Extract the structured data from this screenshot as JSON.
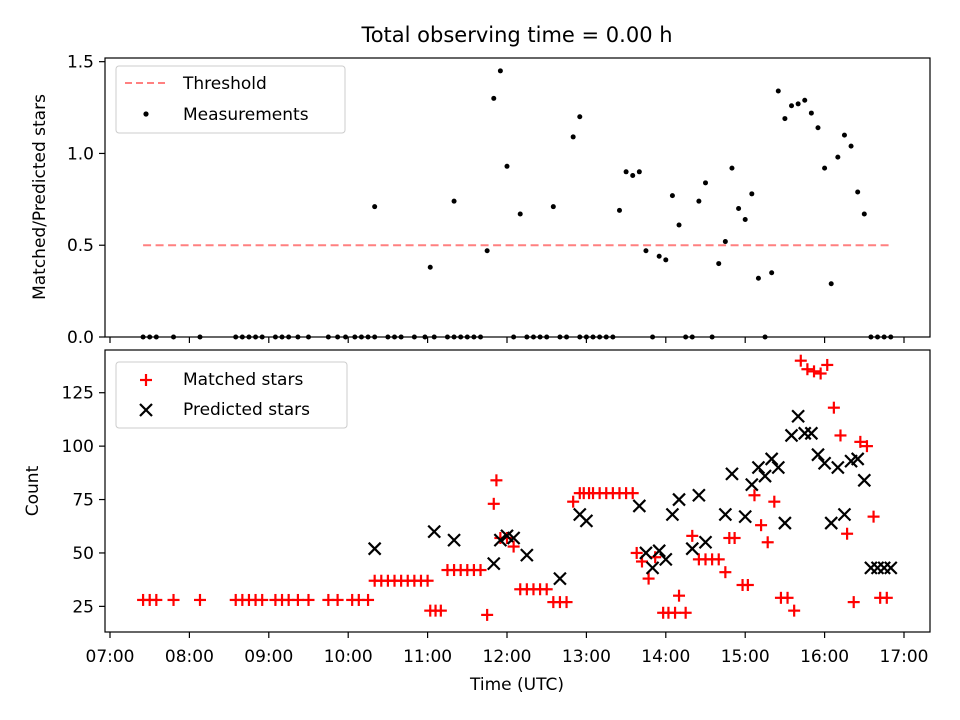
{
  "title": "Total observing time = 0.00 h",
  "chart_data": [
    {
      "type": "scatter",
      "ylabel": "Matched/Predicted stars",
      "ylim": [
        0,
        1.52
      ],
      "yticks": [
        "0.0",
        "0.5",
        "1.0",
        "1.5"
      ],
      "legend": {
        "placement": "top-left",
        "entries": [
          "Threshold",
          "Measurements"
        ]
      },
      "series": [
        {
          "name": "Threshold",
          "kind": "dashed-line",
          "color": "#ff8080",
          "x": [
            "07:25",
            "16:50"
          ],
          "y": [
            0.5,
            0.5
          ]
        },
        {
          "name": "Measurements",
          "kind": "points",
          "color": "#000000",
          "x": [
            "07:25",
            "07:30",
            "07:35",
            "07:48",
            "08:08",
            "08:35",
            "08:40",
            "08:45",
            "08:50",
            "08:55",
            "09:05",
            "09:10",
            "09:15",
            "09:22",
            "09:30",
            "09:45",
            "09:52",
            "09:58",
            "10:05",
            "10:10",
            "10:15",
            "10:20",
            "10:20",
            "10:30",
            "10:35",
            "10:40",
            "10:50",
            "10:58",
            "11:02",
            "11:05",
            "11:15",
            "11:20",
            "11:20",
            "11:25",
            "11:30",
            "11:35",
            "11:40",
            "11:45",
            "11:50",
            "11:55",
            "12:00",
            "12:05",
            "12:10",
            "12:15",
            "12:20",
            "12:25",
            "12:30",
            "12:35",
            "12:40",
            "12:45",
            "12:50",
            "12:55",
            "12:55",
            "13:00",
            "13:05",
            "13:10",
            "13:15",
            "13:20",
            "13:25",
            "13:30",
            "13:35",
            "13:40",
            "13:45",
            "13:50",
            "13:55",
            "14:00",
            "14:05",
            "14:10",
            "14:15",
            "14:20",
            "14:25",
            "14:30",
            "14:35",
            "14:40",
            "14:45",
            "14:50",
            "14:55",
            "15:00",
            "15:05",
            "15:10",
            "15:15",
            "15:20",
            "15:25",
            "15:30",
            "15:35",
            "15:40",
            "15:45",
            "15:50",
            "15:55",
            "16:00",
            "16:05",
            "16:10",
            "16:15",
            "16:20",
            "16:25",
            "16:30",
            "16:35",
            "16:40",
            "16:45",
            "16:50"
          ],
          "y": [
            0,
            0,
            0,
            0,
            0,
            0,
            0,
            0,
            0,
            0,
            0,
            0,
            0,
            0,
            0,
            0,
            0,
            0,
            0,
            0,
            0,
            0,
            0.71,
            0,
            0,
            0,
            0,
            0,
            0.38,
            0,
            0,
            0,
            0.74,
            0,
            0,
            0,
            0,
            0.47,
            1.3,
            1.45,
            0.93,
            0,
            0.67,
            0,
            0,
            0,
            0,
            0.71,
            0,
            0,
            1.09,
            1.2,
            0,
            0,
            0,
            0,
            0,
            0,
            0.69,
            0.9,
            0.88,
            0.9,
            0.47,
            0,
            0.44,
            0.42,
            0.77,
            0.61,
            0,
            0,
            0.74,
            0.84,
            0,
            0.4,
            0.52,
            0.92,
            0.7,
            0.64,
            0.78,
            0.32,
            0,
            0.35,
            1.34,
            1.19,
            1.26,
            1.27,
            1.29,
            1.22,
            1.14,
            0.92,
            0.29,
            0.98,
            1.1,
            1.04,
            0.79,
            0.67,
            0,
            0,
            0,
            0
          ]
        }
      ]
    },
    {
      "type": "scatter",
      "xlabel": "Time (UTC)",
      "ylabel": "Count",
      "ylim": [
        13,
        145
      ],
      "yticks": [
        "25",
        "50",
        "75",
        "100",
        "125"
      ],
      "xticks": [
        "07:00",
        "08:00",
        "09:00",
        "10:00",
        "11:00",
        "12:00",
        "13:00",
        "14:00",
        "15:00",
        "16:00",
        "17:00"
      ],
      "legend": {
        "placement": "top-left",
        "entries": [
          "Matched stars",
          "Predicted stars"
        ]
      },
      "series": [
        {
          "name": "Matched stars",
          "marker": "+",
          "color": "#ff0000",
          "x": [
            "07:25",
            "07:30",
            "07:35",
            "07:48",
            "08:08",
            "08:35",
            "08:40",
            "08:45",
            "08:50",
            "08:55",
            "09:05",
            "09:10",
            "09:15",
            "09:22",
            "09:30",
            "09:45",
            "09:52",
            "10:03",
            "10:08",
            "10:15",
            "10:20",
            "10:25",
            "10:30",
            "10:35",
            "10:40",
            "10:45",
            "10:50",
            "10:55",
            "11:00",
            "11:02",
            "11:06",
            "11:10",
            "11:15",
            "11:20",
            "11:25",
            "11:30",
            "11:35",
            "11:40",
            "11:45",
            "11:50",
            "11:52",
            "11:55",
            "12:00",
            "12:05",
            "12:10",
            "12:15",
            "12:20",
            "12:25",
            "12:30",
            "12:35",
            "12:40",
            "12:45",
            "12:50",
            "12:55",
            "12:58",
            "13:02",
            "13:05",
            "13:10",
            "13:15",
            "13:20",
            "13:25",
            "13:30",
            "13:35",
            "13:38",
            "13:42",
            "13:47",
            "13:52",
            "13:58",
            "14:02",
            "14:07",
            "14:10",
            "14:15",
            "14:20",
            "14:25",
            "14:30",
            "14:35",
            "14:40",
            "14:45",
            "14:48",
            "14:52",
            "14:58",
            "15:02",
            "15:07",
            "15:12",
            "15:17",
            "15:22",
            "15:27",
            "15:32",
            "15:37",
            "15:42",
            "15:47",
            "15:52",
            "15:57",
            "16:02",
            "16:07",
            "16:12",
            "16:17",
            "16:22",
            "16:27",
            "16:32",
            "16:37",
            "16:42",
            "16:47"
          ],
          "y": [
            28,
            28,
            28,
            28,
            28,
            28,
            28,
            28,
            28,
            28,
            28,
            28,
            28,
            28,
            28,
            28,
            28,
            28,
            28,
            28,
            37,
            37,
            37,
            37,
            37,
            37,
            37,
            37,
            37,
            23,
            23,
            23,
            42,
            42,
            42,
            42,
            42,
            42,
            21,
            73,
            84,
            57,
            57,
            53,
            33,
            33,
            33,
            33,
            33,
            27,
            27,
            27,
            74,
            78,
            78,
            78,
            78,
            78,
            78,
            78,
            78,
            78,
            78,
            50,
            46,
            38,
            48,
            22,
            22,
            22,
            30,
            22,
            58,
            47,
            47,
            47,
            47,
            41,
            57,
            57,
            35,
            35,
            77,
            63,
            55,
            74,
            29,
            29,
            23,
            140,
            136,
            135,
            134,
            138,
            118,
            105,
            59,
            27,
            102,
            100,
            67,
            29,
            29
          ]
        },
        {
          "name": "Predicted stars",
          "marker": "x",
          "color": "#000000",
          "x": [
            "10:20",
            "11:05",
            "11:20",
            "11:50",
            "11:55",
            "12:00",
            "12:05",
            "12:15",
            "12:40",
            "12:55",
            "13:00",
            "13:40",
            "13:45",
            "13:50",
            "13:55",
            "14:00",
            "14:05",
            "14:10",
            "14:20",
            "14:25",
            "14:30",
            "14:45",
            "14:50",
            "15:00",
            "15:05",
            "15:10",
            "15:15",
            "15:20",
            "15:25",
            "15:30",
            "15:35",
            "15:40",
            "15:45",
            "15:50",
            "15:55",
            "16:00",
            "16:05",
            "16:10",
            "16:15",
            "16:20",
            "16:25",
            "16:30",
            "16:35",
            "16:40",
            "16:45",
            "16:50"
          ],
          "y": [
            52,
            60,
            56,
            45,
            56,
            58,
            57,
            49,
            38,
            68,
            65,
            72,
            50,
            43,
            51,
            47,
            68,
            75,
            52,
            77,
            55,
            68,
            87,
            67,
            82,
            90,
            86,
            94,
            90,
            64,
            105,
            114,
            106,
            106,
            96,
            92,
            64,
            90,
            68,
            93,
            94,
            84,
            43,
            43,
            43,
            43
          ]
        }
      ]
    }
  ]
}
